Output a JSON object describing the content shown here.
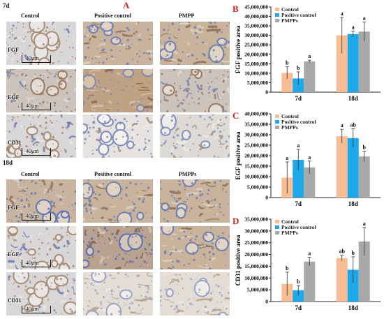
{
  "figure": {
    "panel_a": "A",
    "set1": {
      "time": "7d",
      "cols": [
        "Control",
        "Positive control",
        "PMPP"
      ],
      "rows": [
        {
          "label": "FGF",
          "tones": [
            "blue-dots",
            "brown-fiber",
            "brown-fiber"
          ],
          "scale": "40μm"
        },
        {
          "label": "EGF",
          "tones": [
            "blue-mix",
            "brown",
            "blue-mix"
          ],
          "scale": "40μm"
        },
        {
          "label": "CD31",
          "tones": [
            "blue-dots",
            "pale-dots",
            "pale-mix"
          ],
          "scale": "40μm"
        }
      ]
    },
    "set2": {
      "time": "18d",
      "cols": [
        "Control",
        "Positive control",
        "PMPPs"
      ],
      "rows": [
        {
          "label": "FGF",
          "tones": [
            "brown-mix",
            "brown-fiber",
            "brown-fiber"
          ],
          "scale": "40μm"
        },
        {
          "label": "EGF",
          "tones": [
            "blue-dots",
            "brown-blue",
            "brown-fiber"
          ],
          "scale": "40μm"
        },
        {
          "label": "CD31",
          "tones": [
            "blue-dots",
            "pale-fiber",
            "pale-fiber"
          ],
          "scale": "40μm"
        }
      ]
    }
  },
  "colors": {
    "control": "#F8BE93",
    "positive": "#1DA8EC",
    "pmpp": "#A8A8A8",
    "panel_letter": "#D22222"
  },
  "chart_data": [
    {
      "type": "bar",
      "panel": "B",
      "ylabel": "FGF positive area",
      "categories": [
        "7d",
        "18d"
      ],
      "ylim": [
        0,
        45000000
      ],
      "yticks": [
        0,
        5000000,
        10000000,
        15000000,
        20000000,
        25000000,
        30000000,
        35000000,
        40000000,
        45000000
      ],
      "ytick_labels": [
        "0",
        "5,000,000",
        "10,000,000",
        "15,000,000",
        "20,000,000",
        "25,000,000",
        "30,000,000",
        "35,000,000",
        "40,000,000",
        "45,000,000"
      ],
      "legend": "top-left",
      "series": [
        {
          "name": "Control",
          "values": [
            10200000,
            30000000
          ],
          "errors": [
            3200000,
            9500000
          ],
          "letters": [
            "b",
            "a"
          ]
        },
        {
          "name": "Positive control",
          "values": [
            7200000,
            30700000
          ],
          "errors": [
            3500000,
            1500000
          ],
          "letters": [
            "b",
            "a"
          ]
        },
        {
          "name": "PMPPs",
          "values": [
            16200000,
            32000000
          ],
          "errors": [
            700000,
            5000000
          ],
          "letters": [
            "a",
            "a"
          ]
        }
      ]
    },
    {
      "type": "bar",
      "panel": "C",
      "ylabel": "EGF positive area",
      "categories": [
        "7d",
        "18d"
      ],
      "ylim": [
        0,
        40000000
      ],
      "yticks": [
        0,
        5000000,
        10000000,
        15000000,
        20000000,
        25000000,
        30000000,
        35000000,
        40000000
      ],
      "ytick_labels": [
        "0",
        "5,000,000",
        "10,000,000",
        "15,000,000",
        "20,000,000",
        "25,000,000",
        "30,000,000",
        "35,000,000",
        "40,000,000"
      ],
      "legend": "top-left",
      "series": [
        {
          "name": "Control",
          "values": [
            9500000,
            29300000
          ],
          "errors": [
            7500000,
            3300000
          ],
          "letters": [
            "a",
            "a"
          ]
        },
        {
          "name": "Positive control",
          "values": [
            18000000,
            28400000
          ],
          "errors": [
            5000000,
            4500000
          ],
          "letters": [
            "a",
            "ab"
          ]
        },
        {
          "name": "PMPPs",
          "values": [
            14400000,
            19600000
          ],
          "errors": [
            3000000,
            2500000
          ],
          "letters": [
            "a",
            "b"
          ]
        }
      ]
    },
    {
      "type": "bar",
      "panel": "D",
      "ylabel": "CD31 positive area",
      "categories": [
        "7d",
        "18d"
      ],
      "ylim": [
        0,
        35000000
      ],
      "yticks": [
        0,
        5000000,
        10000000,
        15000000,
        20000000,
        25000000,
        30000000,
        35000000
      ],
      "ytick_labels": [
        "0",
        "5,000,000",
        "10,000,000",
        "15,000,000",
        "20,000,000",
        "25,000,000",
        "30,000,000",
        "35,000,000"
      ],
      "legend": "top-left",
      "series": [
        {
          "name": "Control",
          "values": [
            7500000,
            18500000
          ],
          "errors": [
            5000000,
            1200000
          ],
          "letters": [
            "b",
            "ab"
          ]
        },
        {
          "name": "Positive control",
          "values": [
            4800000,
            13500000
          ],
          "errors": [
            2000000,
            5500000
          ],
          "letters": [
            "b",
            "b"
          ]
        },
        {
          "name": "PMPPs",
          "values": [
            17000000,
            25500000
          ],
          "errors": [
            1800000,
            6000000
          ],
          "letters": [
            "a",
            "a"
          ]
        }
      ]
    }
  ]
}
